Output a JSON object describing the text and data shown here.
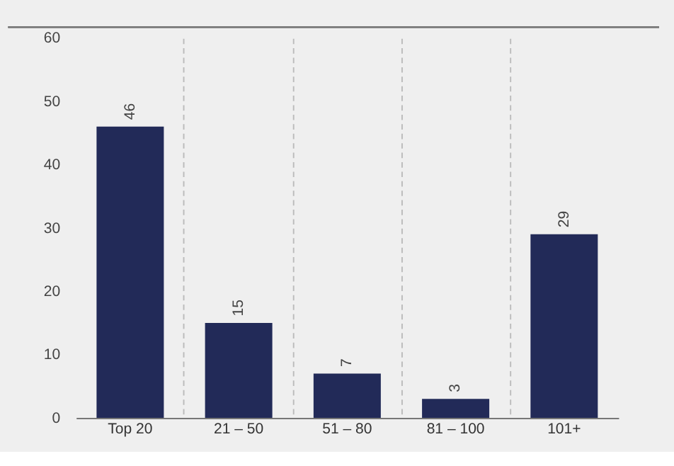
{
  "chart_data": {
    "type": "bar",
    "categories": [
      "Top 20",
      "21 – 50",
      "51 – 80",
      "81 – 100",
      "101+"
    ],
    "values": [
      46,
      15,
      7,
      3,
      29
    ],
    "color": "#222a58",
    "ylim": [
      0,
      60
    ],
    "yticks": [
      0,
      10,
      20,
      30,
      40,
      50,
      60
    ],
    "data_labels": true,
    "grid": "x"
  }
}
